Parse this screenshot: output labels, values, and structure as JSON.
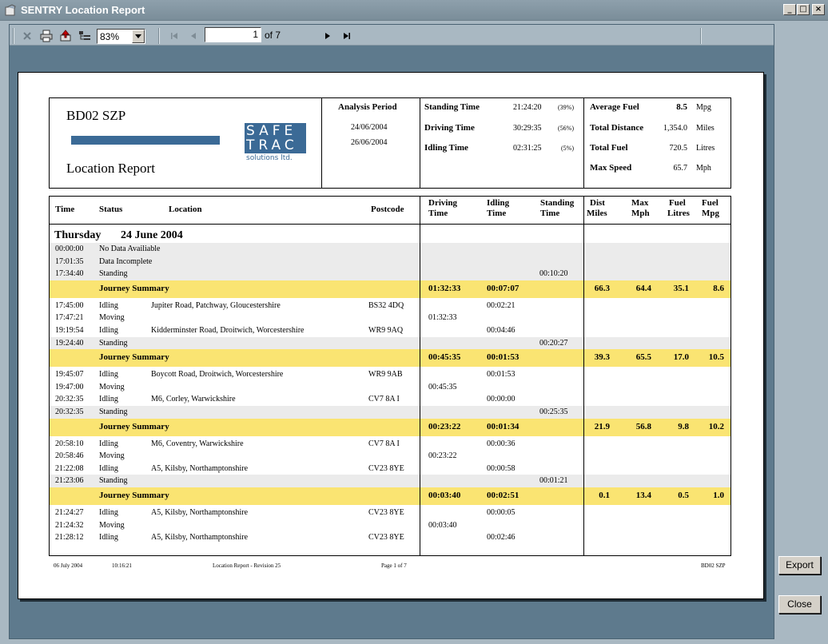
{
  "window": {
    "title": "SENTRY Location Report",
    "minimize": "_",
    "maximize": "□",
    "close": "×"
  },
  "toolbar": {
    "zoom": "83%",
    "page": "1",
    "page_of": "of 7"
  },
  "side": {
    "export": "Export",
    "close": "Close"
  },
  "report": {
    "vehicle": "BD02 SZP",
    "title": "Location Report",
    "logo": {
      "l1": "SAFE",
      "l2": "TRAC",
      "l3": "solutions ltd."
    },
    "analysis": {
      "label": "Analysis Period",
      "from": "24/06/2004",
      "to": "26/06/2004"
    },
    "times": [
      {
        "label": "Standing Time",
        "value": "21:24:20",
        "pct": "(39%)"
      },
      {
        "label": "Driving Time",
        "value": "30:29:35",
        "pct": "(56%)"
      },
      {
        "label": "Idling Time",
        "value": "02:31:25",
        "pct": "(5%)"
      }
    ],
    "stats": [
      {
        "label": "Average Fuel",
        "value": "8.5",
        "unit": "Mpg"
      },
      {
        "label": "Total Distance",
        "value": "1,354.0",
        "unit": "Miles"
      },
      {
        "label": "Total Fuel",
        "value": "720.5",
        "unit": "Litres"
      },
      {
        "label": "Max Speed",
        "value": "65.7",
        "unit": "Mph"
      }
    ],
    "columns": {
      "time": "Time",
      "status": "Status",
      "location": "Location",
      "postcode": "Postcode",
      "driving1": "Driving",
      "driving2": "Time",
      "idling1": "Idling",
      "idling2": "Time",
      "standing1": "Standing",
      "standing2": "Time",
      "dist1": "Dist",
      "dist2": "Miles",
      "maxmph1": "Max",
      "maxmph2": "Mph",
      "fuel1": "Fuel",
      "fuel2": "Litres",
      "mpg1": "Fuel",
      "mpg2": "Mpg"
    },
    "day": {
      "weekday": "Thursday",
      "date": "24 June 2004"
    },
    "rows": [
      {
        "type": "grey",
        "time": "00:00:00",
        "status": "No Data Availiable",
        "location": "",
        "postcode": "",
        "driving": "",
        "idling": "",
        "standing": ""
      },
      {
        "type": "grey",
        "time": "17:01:35",
        "status": "Data Incomplete",
        "location": "",
        "postcode": "",
        "driving": "",
        "idling": "",
        "standing": ""
      },
      {
        "type": "grey",
        "time": "17:34:40",
        "status": "Standing",
        "location": "",
        "postcode": "",
        "driving": "",
        "idling": "",
        "standing": "00:10:20"
      },
      {
        "type": "sum",
        "label": "Journey Summary",
        "driving": "01:32:33",
        "idling": "00:07:07",
        "dist": "66.3",
        "maxmph": "64.4",
        "fuel": "35.1",
        "mpg": "8.6"
      },
      {
        "type": "white",
        "time": "17:45:00",
        "status": "Idling",
        "location": "Jupiter Road, Patchway, Gloucestershire",
        "postcode": "BS32 4DQ",
        "driving": "",
        "idling": "00:02:21",
        "standing": ""
      },
      {
        "type": "white",
        "time": "17:47:21",
        "status": "Moving",
        "location": "",
        "postcode": "",
        "driving": "01:32:33",
        "idling": "",
        "standing": ""
      },
      {
        "type": "white",
        "time": "19:19:54",
        "status": "Idling",
        "location": "Kidderminster Road, Droitwich, Worcestershire",
        "postcode": "WR9 9AQ",
        "driving": "",
        "idling": "00:04:46",
        "standing": ""
      },
      {
        "type": "grey",
        "time": "19:24:40",
        "status": "Standing",
        "location": "",
        "postcode": "",
        "driving": "",
        "idling": "",
        "standing": "00:20:27"
      },
      {
        "type": "sum",
        "label": "Journey Summary",
        "driving": "00:45:35",
        "idling": "00:01:53",
        "dist": "39.3",
        "maxmph": "65.5",
        "fuel": "17.0",
        "mpg": "10.5"
      },
      {
        "type": "white",
        "time": "19:45:07",
        "status": "Idling",
        "location": "Boycott Road, Droitwich, Worcestershire",
        "postcode": "WR9 9AB",
        "driving": "",
        "idling": "00:01:53",
        "standing": ""
      },
      {
        "type": "white",
        "time": "19:47:00",
        "status": "Moving",
        "location": "",
        "postcode": "",
        "driving": "00:45:35",
        "idling": "",
        "standing": ""
      },
      {
        "type": "white",
        "time": "20:32:35",
        "status": "Idling",
        "location": "M6, Corley, Warwickshire",
        "postcode": "CV7 8A I",
        "driving": "",
        "idling": "00:00:00",
        "standing": ""
      },
      {
        "type": "grey",
        "time": "20:32:35",
        "status": "Standing",
        "location": "",
        "postcode": "",
        "driving": "",
        "idling": "",
        "standing": "00:25:35"
      },
      {
        "type": "sum",
        "label": "Journey Summary",
        "driving": "00:23:22",
        "idling": "00:01:34",
        "dist": "21.9",
        "maxmph": "56.8",
        "fuel": "9.8",
        "mpg": "10.2"
      },
      {
        "type": "white",
        "time": "20:58:10",
        "status": "Idling",
        "location": "M6, Coventry, Warwickshire",
        "postcode": "CV7 8A I",
        "driving": "",
        "idling": "00:00:36",
        "standing": ""
      },
      {
        "type": "white",
        "time": "20:58:46",
        "status": "Moving",
        "location": "",
        "postcode": "",
        "driving": "00:23:22",
        "idling": "",
        "standing": ""
      },
      {
        "type": "white",
        "time": "21:22:08",
        "status": "Idling",
        "location": "A5, Kilsby, Northamptonshire",
        "postcode": "CV23 8YE",
        "driving": "",
        "idling": "00:00:58",
        "standing": ""
      },
      {
        "type": "grey",
        "time": "21:23:06",
        "status": "Standing",
        "location": "",
        "postcode": "",
        "driving": "",
        "idling": "",
        "standing": "00:01:21"
      },
      {
        "type": "sum",
        "label": "Journey Summary",
        "driving": "00:03:40",
        "idling": "00:02:51",
        "dist": "0.1",
        "maxmph": "13.4",
        "fuel": "0.5",
        "mpg": "1.0"
      },
      {
        "type": "white",
        "time": "21:24:27",
        "status": "Idling",
        "location": "A5, Kilsby, Northamptonshire",
        "postcode": "CV23 8YE",
        "driving": "",
        "idling": "00:00:05",
        "standing": ""
      },
      {
        "type": "white",
        "time": "21:24:32",
        "status": "Moving",
        "location": "",
        "postcode": "",
        "driving": "00:03:40",
        "idling": "",
        "standing": ""
      },
      {
        "type": "white",
        "time": "21:28:12",
        "status": "Idling",
        "location": "A5, Kilsby, Northamptonshire",
        "postcode": "CV23 8YE",
        "driving": "",
        "idling": "00:02:46",
        "standing": ""
      }
    ],
    "footer": {
      "date": "06 July 2004",
      "time": "10:16:21",
      "name": "Location Report - Revision 25",
      "page": "Page 1 of 7",
      "vehicle": "BD02 SZP"
    }
  }
}
